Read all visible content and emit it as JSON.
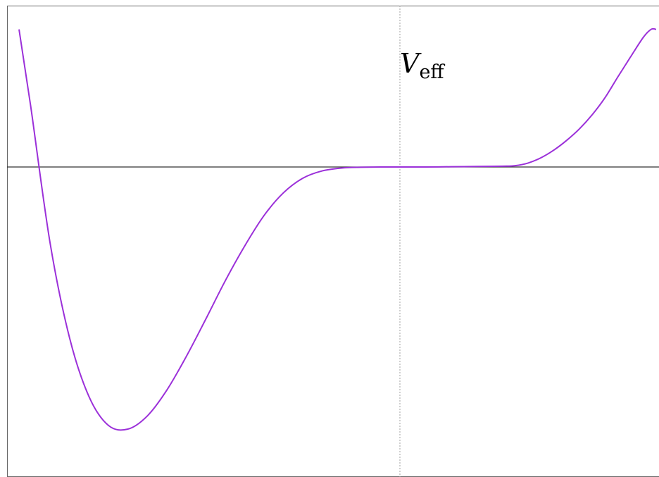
{
  "chart_data": {
    "type": "line",
    "annotations": [
      {
        "main": "V",
        "sub": "eff"
      }
    ],
    "xlim": [
      -1,
      1
    ],
    "ylim": [
      -1,
      0.525
    ],
    "grid": false,
    "x_axis_line_at_y": 0,
    "y_reference_line_at_x": 0,
    "series": [
      {
        "color": "#9b30d9",
        "x": [
          -0.98,
          -0.95,
          -0.9,
          -0.85,
          -0.8,
          -0.75,
          -0.7,
          -0.65,
          -0.6,
          -0.55,
          -0.5,
          -0.45,
          -0.4,
          -0.35,
          -0.3,
          -0.25,
          -0.2,
          -0.15,
          -0.1,
          -0.05,
          0,
          0.1,
          0.2,
          0.3,
          0.4,
          0.45,
          0.5,
          0.55,
          0.6,
          0.65,
          0.7,
          0.75,
          0.8,
          0.85,
          0.9,
          0.95,
          0.98,
          1.0
        ],
        "y": [
          0.525,
          0.232,
          -0.291,
          -0.652,
          -0.876,
          -0.986,
          -1.0,
          -0.95,
          -0.852,
          -0.724,
          -0.582,
          -0.436,
          -0.303,
          -0.186,
          -0.099,
          -0.043,
          -0.015,
          -0.004,
          -0.001,
          0,
          0,
          0,
          0.001,
          0.002,
          0.003,
          0.005,
          0.015,
          0.035,
          0.064,
          0.101,
          0.145,
          0.199,
          0.264,
          0.343,
          0.42,
          0.495,
          0.525,
          0.525
        ]
      }
    ]
  },
  "colors": {
    "curve": "#9b30d9",
    "axis": "#333333",
    "reference_line": "#a0a0a0",
    "frame": "#666666"
  }
}
